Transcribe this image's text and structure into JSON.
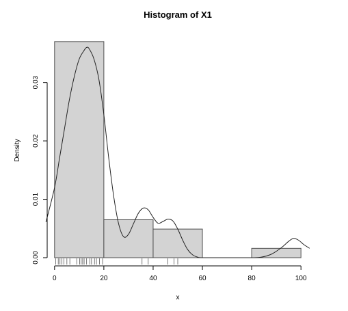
{
  "chart_data": {
    "type": "bar",
    "title": "Histogram of X1",
    "xlabel": "x",
    "ylabel": "Density",
    "xlim": [
      -3,
      103
    ],
    "ylim": [
      0,
      0.0371
    ],
    "x_ticks": [
      0,
      20,
      40,
      60,
      80,
      100
    ],
    "x_tick_labels": [
      "0",
      "20",
      "40",
      "60",
      "80",
      "100"
    ],
    "y_ticks": [
      0,
      0.01,
      0.02,
      0.03
    ],
    "y_tick_labels": [
      "0.00",
      "0.01",
      "0.02",
      "0.03"
    ],
    "bins": [
      {
        "start": 0,
        "end": 20,
        "density": 0.037
      },
      {
        "start": 20,
        "end": 40,
        "density": 0.0065
      },
      {
        "start": 40,
        "end": 60,
        "density": 0.0049
      },
      {
        "start": 60,
        "end": 80,
        "density": 0.0
      },
      {
        "start": 80,
        "end": 100,
        "density": 0.0016
      }
    ],
    "density_curve": [
      [
        -3.5,
        0.0061
      ],
      [
        0,
        0.012
      ],
      [
        2,
        0.017
      ],
      [
        4,
        0.022
      ],
      [
        6,
        0.027
      ],
      [
        8,
        0.031
      ],
      [
        10,
        0.034
      ],
      [
        12,
        0.0355
      ],
      [
        13,
        0.036
      ],
      [
        14,
        0.0358
      ],
      [
        16,
        0.034
      ],
      [
        18,
        0.0305
      ],
      [
        20,
        0.0245
      ],
      [
        22,
        0.017
      ],
      [
        24,
        0.0105
      ],
      [
        26,
        0.0058
      ],
      [
        28,
        0.0036
      ],
      [
        30,
        0.004
      ],
      [
        32,
        0.0058
      ],
      [
        34,
        0.0076
      ],
      [
        36,
        0.0085
      ],
      [
        38,
        0.0082
      ],
      [
        40,
        0.0069
      ],
      [
        42,
        0.0059
      ],
      [
        44,
        0.0062
      ],
      [
        46,
        0.0066
      ],
      [
        48,
        0.0063
      ],
      [
        50,
        0.0049
      ],
      [
        52,
        0.003
      ],
      [
        54,
        0.0014
      ],
      [
        56,
        0.0005
      ],
      [
        58,
        0.0001
      ],
      [
        60,
        0.0
      ],
      [
        70,
        0.0
      ],
      [
        80,
        0.0
      ],
      [
        84,
        0.0001
      ],
      [
        88,
        0.0006
      ],
      [
        92,
        0.0017
      ],
      [
        95,
        0.0028
      ],
      [
        97,
        0.0033
      ],
      [
        99,
        0.003
      ],
      [
        101,
        0.0023
      ],
      [
        103.5,
        0.0016
      ]
    ],
    "rug": [
      0.5,
      1.5,
      2.2,
      3.0,
      3.8,
      5.0,
      6.2,
      9.0,
      10.2,
      10.8,
      11.4,
      12.0,
      13.0,
      14.3,
      15.0,
      16.2,
      17.0,
      18.2,
      19.5,
      35.5,
      38.0,
      46.0,
      48.5,
      50.0
    ]
  }
}
